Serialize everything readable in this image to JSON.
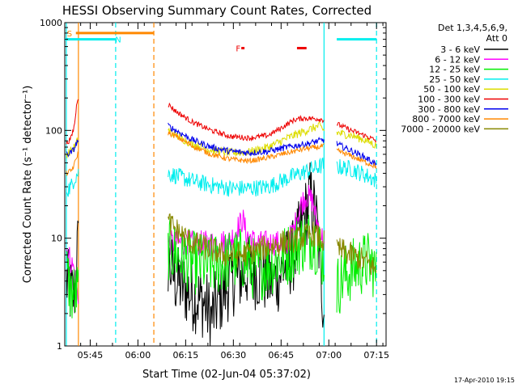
{
  "chart_data": {
    "type": "line",
    "title": "HESSI Observing Summary Count Rates, Corrected",
    "ylabel": "Corrected Count Rate (s⁻¹ detector⁻¹)",
    "xlabel": "Start Time (02-Jun-04 05:37:02)",
    "footer": "17-Apr-2010 19:15",
    "x_unit": "minutes after 05:37:02",
    "xlim": [
      0,
      101
    ],
    "ylim": [
      1,
      1000
    ],
    "y_scale": "log",
    "y_ticks": [
      {
        "value": 1,
        "label": "1"
      },
      {
        "value": 10,
        "label": "10"
      },
      {
        "value": 100,
        "label": "100"
      },
      {
        "value": 1000,
        "label": "1000"
      }
    ],
    "x_ticks": [
      {
        "t": 8,
        "label": "05:45"
      },
      {
        "t": 23,
        "label": "06:00"
      },
      {
        "t": 38,
        "label": "06:15"
      },
      {
        "t": 53,
        "label": "06:30"
      },
      {
        "t": 68,
        "label": "06:45"
      },
      {
        "t": 83,
        "label": "07:00"
      },
      {
        "t": 98,
        "label": "07:15"
      }
    ],
    "legend": {
      "header": [
        "Det 1,3,4,5,6,9,",
        "Att 0"
      ],
      "entries": [
        {
          "label": "3 - 6 keV",
          "color": "#000000"
        },
        {
          "label": "6 - 12 keV",
          "color": "#ff00ff"
        },
        {
          "label": "12 - 25 keV",
          "color": "#00ee00"
        },
        {
          "label": "25 - 50 keV",
          "color": "#00eeee"
        },
        {
          "label": "50 - 100 keV",
          "color": "#dddd00"
        },
        {
          "label": "100 - 300 keV",
          "color": "#ee0000"
        },
        {
          "label": "300 - 800 keV",
          "color": "#0000ee"
        },
        {
          "label": "800 - 7000 keV",
          "color": "#ff8800"
        },
        {
          "label": "7000 - 20000 keV",
          "color": "#888800"
        }
      ]
    },
    "segments": [
      [
        0.5,
        4.3
      ],
      [
        32.5,
        81.5
      ],
      [
        85.5,
        98
      ]
    ],
    "series": [
      {
        "name": "3 - 6 keV",
        "color": "#000000",
        "noise": 0.35,
        "points": [
          [
            0.5,
            4
          ],
          [
            2,
            3
          ],
          [
            3,
            3
          ],
          [
            4,
            8
          ],
          [
            32.5,
            6
          ],
          [
            35,
            4
          ],
          [
            40,
            3
          ],
          [
            44,
            2.5
          ],
          [
            46,
            1.8
          ],
          [
            48,
            2.5
          ],
          [
            52,
            4
          ],
          [
            58,
            5
          ],
          [
            66,
            4
          ],
          [
            72,
            7
          ],
          [
            76,
            18
          ],
          [
            77,
            25
          ],
          [
            79,
            15
          ],
          [
            80,
            8
          ],
          [
            81,
            3
          ],
          [
            81.5,
            2.5
          ]
        ]
      },
      {
        "name": "6 - 12 keV",
        "color": "#ff00ff",
        "noise": 0.12,
        "points": [
          [
            0.5,
            8
          ],
          [
            2,
            6
          ],
          [
            3,
            5
          ],
          [
            4,
            3
          ],
          [
            32.5,
            9
          ],
          [
            40,
            9
          ],
          [
            48,
            9
          ],
          [
            52,
            9.5
          ],
          [
            56,
            15
          ],
          [
            57,
            11
          ],
          [
            60,
            9
          ],
          [
            66,
            9
          ],
          [
            70,
            9
          ],
          [
            72,
            12
          ],
          [
            74,
            20
          ],
          [
            76,
            25
          ],
          [
            78,
            22
          ],
          [
            79,
            15
          ],
          [
            81,
            10
          ],
          [
            81.5,
            9
          ]
        ]
      },
      {
        "name": "12 - 25 keV",
        "color": "#00ee00",
        "noise": 0.3,
        "points": [
          [
            0.5,
            5
          ],
          [
            2,
            3
          ],
          [
            3,
            3
          ],
          [
            32.5,
            8
          ],
          [
            35,
            7
          ],
          [
            40,
            6
          ],
          [
            45,
            5.5
          ],
          [
            50,
            6
          ],
          [
            56,
            6.5
          ],
          [
            60,
            5
          ],
          [
            66,
            6
          ],
          [
            70,
            7
          ],
          [
            74,
            9
          ],
          [
            78,
            10
          ],
          [
            80,
            8
          ],
          [
            81.5,
            6
          ],
          [
            85.5,
            3.5
          ],
          [
            88,
            4.5
          ],
          [
            92,
            5.5
          ],
          [
            95,
            6
          ],
          [
            97,
            5.5
          ],
          [
            98,
            4
          ]
        ]
      },
      {
        "name": "25 - 50 keV",
        "color": "#00eeee",
        "noise": 0.08,
        "points": [
          [
            0.5,
            28
          ],
          [
            2,
            30
          ],
          [
            3,
            36
          ],
          [
            4,
            40
          ],
          [
            32.5,
            40
          ],
          [
            35,
            38
          ],
          [
            40,
            34
          ],
          [
            46,
            31
          ],
          [
            52,
            29
          ],
          [
            58,
            29
          ],
          [
            64,
            30
          ],
          [
            70,
            36
          ],
          [
            76,
            42
          ],
          [
            80,
            46
          ],
          [
            81.5,
            48
          ],
          [
            85.5,
            46
          ],
          [
            90,
            44
          ],
          [
            95,
            38
          ],
          [
            98,
            34
          ]
        ]
      },
      {
        "name": "50 - 100 keV",
        "color": "#dddd00",
        "noise": 0.04,
        "points": [
          [
            0.5,
            60
          ],
          [
            2,
            65
          ],
          [
            3,
            70
          ],
          [
            4,
            80
          ],
          [
            32.5,
            100
          ],
          [
            35,
            90
          ],
          [
            40,
            75
          ],
          [
            46,
            66
          ],
          [
            52,
            62
          ],
          [
            58,
            63
          ],
          [
            64,
            70
          ],
          [
            70,
            85
          ],
          [
            74,
            95
          ],
          [
            78,
            105
          ],
          [
            80,
            110
          ],
          [
            81.5,
            100
          ],
          [
            85.5,
            95
          ],
          [
            90,
            90
          ],
          [
            95,
            80
          ],
          [
            98,
            72
          ]
        ]
      },
      {
        "name": "100 - 300 keV",
        "color": "#ee0000",
        "noise": 0.025,
        "points": [
          [
            0.5,
            75
          ],
          [
            2,
            85
          ],
          [
            3,
            110
          ],
          [
            4,
            200
          ],
          [
            32.5,
            175
          ],
          [
            35,
            150
          ],
          [
            40,
            120
          ],
          [
            46,
            100
          ],
          [
            52,
            88
          ],
          [
            58,
            85
          ],
          [
            64,
            90
          ],
          [
            68,
            105
          ],
          [
            72,
            125
          ],
          [
            75,
            130
          ],
          [
            80,
            128
          ],
          [
            81.5,
            125
          ],
          [
            85.5,
            115
          ],
          [
            90,
            100
          ],
          [
            95,
            88
          ],
          [
            98,
            80
          ]
        ]
      },
      {
        "name": "300 - 800 keV",
        "color": "#0000ee",
        "noise": 0.03,
        "points": [
          [
            0.5,
            60
          ],
          [
            2,
            62
          ],
          [
            3,
            68
          ],
          [
            4,
            80
          ],
          [
            32.5,
            110
          ],
          [
            35,
            100
          ],
          [
            40,
            82
          ],
          [
            46,
            70
          ],
          [
            52,
            64
          ],
          [
            58,
            62
          ],
          [
            64,
            64
          ],
          [
            70,
            70
          ],
          [
            76,
            75
          ],
          [
            80,
            80
          ],
          [
            81.5,
            82
          ],
          [
            85.5,
            75
          ],
          [
            90,
            65
          ],
          [
            95,
            55
          ],
          [
            98,
            48
          ]
        ]
      },
      {
        "name": "800 - 7000 keV",
        "color": "#ff8800",
        "noise": 0.025,
        "points": [
          [
            0.5,
            40
          ],
          [
            2,
            42
          ],
          [
            3,
            48
          ],
          [
            4,
            60
          ],
          [
            32.5,
            95
          ],
          [
            35,
            88
          ],
          [
            40,
            72
          ],
          [
            46,
            60
          ],
          [
            52,
            54
          ],
          [
            58,
            52
          ],
          [
            64,
            56
          ],
          [
            70,
            62
          ],
          [
            76,
            68
          ],
          [
            80,
            70
          ],
          [
            81.5,
            72
          ],
          [
            85.5,
            65
          ],
          [
            90,
            58
          ],
          [
            95,
            50
          ],
          [
            98,
            46
          ]
        ]
      },
      {
        "name": "7000 - 20000 keV",
        "color": "#888800",
        "noise": 0.12,
        "points": [
          [
            32.5,
            14
          ],
          [
            35,
            12
          ],
          [
            40,
            9
          ],
          [
            45,
            8
          ],
          [
            50,
            7
          ],
          [
            56,
            7
          ],
          [
            62,
            8
          ],
          [
            68,
            9
          ],
          [
            74,
            10
          ],
          [
            78,
            11
          ],
          [
            80,
            10
          ],
          [
            81.5,
            9
          ],
          [
            85.5,
            8
          ],
          [
            90,
            7
          ],
          [
            95,
            6
          ],
          [
            98,
            5
          ]
        ]
      }
    ],
    "vlines": [
      {
        "t": 0.5,
        "color": "#00eeee",
        "dashed": false
      },
      {
        "t": 4.3,
        "color": "#ff8800",
        "dashed": false
      },
      {
        "t": 16,
        "color": "#00eeee",
        "dashed": true
      },
      {
        "t": 28,
        "color": "#ff8800",
        "dashed": true
      },
      {
        "t": 81.5,
        "color": "#00eeee",
        "dashed": false
      },
      {
        "t": 98,
        "color": "#00eeee",
        "dashed": true
      }
    ],
    "bars": [
      {
        "t0": 0,
        "t1": 16,
        "y": 700,
        "color": "#00eeee",
        "label": "N",
        "label_t": 16.8,
        "label_side": "right"
      },
      {
        "t0": 85.5,
        "t1": 98,
        "y": 700,
        "color": "#00eeee",
        "label": "",
        "label_t": 0,
        "label_side": "right"
      },
      {
        "t0": 3.5,
        "t1": 28,
        "y": 800,
        "color": "#ff8800",
        "label": "S",
        "label_t": 1.5,
        "label_side": "left"
      },
      {
        "t0": 55.5,
        "t1": 56.5,
        "y": 580,
        "color": "#ee0000",
        "label": "F",
        "label_t": 54.5,
        "label_side": "left"
      },
      {
        "t0": 73,
        "t1": 76,
        "y": 580,
        "color": "#ee0000",
        "label": "",
        "label_t": 0,
        "label_side": "right"
      }
    ]
  }
}
